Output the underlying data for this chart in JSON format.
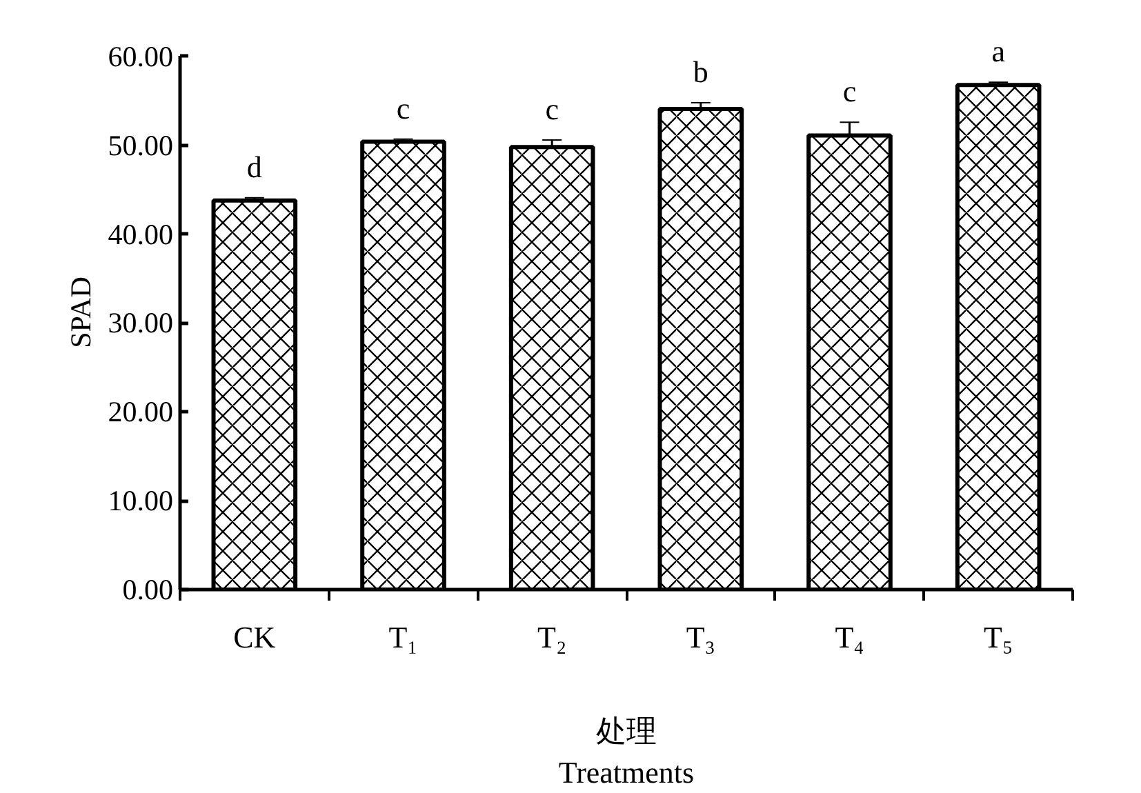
{
  "chart_data": {
    "type": "bar",
    "ylabel": "SPAD",
    "xlabel": "处理\nTreatments",
    "categories": [
      "CK",
      "T₁",
      "T₂",
      "T₃",
      "T₄",
      "T₅"
    ],
    "series": [
      {
        "color": "#000000",
        "values": [
          43.8,
          50.4,
          49.8,
          54.1,
          51.1,
          56.8
        ],
        "errors": [
          0.3,
          0.3,
          0.8,
          0.7,
          1.5,
          0.3
        ]
      }
    ],
    "ylim": [
      0,
      60
    ],
    "yticks": [
      {
        "value": 0,
        "label": "0.00"
      },
      {
        "value": 10,
        "label": "10.00"
      },
      {
        "value": 20,
        "label": "20.00"
      },
      {
        "value": 30,
        "label": "30.00"
      },
      {
        "value": 40,
        "label": "40.00"
      },
      {
        "value": 50,
        "label": "50.00"
      },
      {
        "value": 60,
        "label": "60.00"
      }
    ],
    "annotations": [
      {
        "text": "d",
        "x": "CK",
        "y": 44.1
      },
      {
        "text": "c",
        "x": "T₁",
        "y": 50.7
      },
      {
        "text": "c",
        "x": "T₂",
        "y": 50.6
      },
      {
        "text": "b",
        "x": "T₃",
        "y": 54.8
      },
      {
        "text": "c",
        "x": "T₄",
        "y": 52.6
      },
      {
        "text": "a",
        "x": "T₅",
        "y": 57.1
      }
    ],
    "grid": false
  }
}
